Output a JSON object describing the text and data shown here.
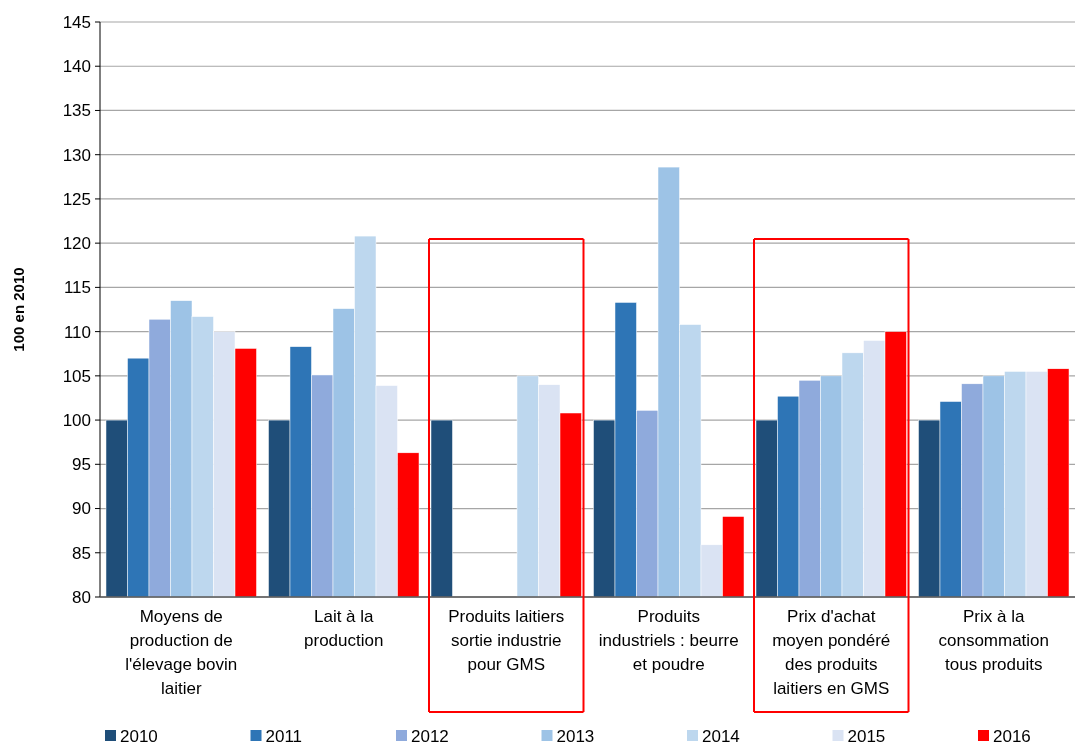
{
  "chart_data": {
    "type": "bar",
    "ylabel": "100 en 2010",
    "categories": [
      "Moyens de production de l'élevage bovin laitier",
      "Lait à la production",
      "Produits laitiers sortie industrie pour GMS",
      "Produits industriels : beurre et poudre",
      "Prix d'achat moyen pondéré des produits laitiers en GMS",
      "Prix à la consommation tous produits"
    ],
    "series": [
      {
        "name": "2010",
        "color": "#1f4e79",
        "values": [
          100,
          100,
          100,
          100,
          100,
          100
        ]
      },
      {
        "name": "2011",
        "color": "#2e75b6",
        "values": [
          107,
          108.3,
          null,
          113.3,
          102.7,
          102.1
        ]
      },
      {
        "name": "2012",
        "color": "#8faadc",
        "values": [
          111.4,
          105.1,
          null,
          101.1,
          104.5,
          104.1
        ]
      },
      {
        "name": "2013",
        "color": "#9dc3e6",
        "values": [
          113.5,
          112.6,
          null,
          128.6,
          105,
          105
        ]
      },
      {
        "name": "2014",
        "color": "#bdd7ee",
        "values": [
          111.7,
          120.8,
          105,
          110.8,
          107.6,
          105.5
        ]
      },
      {
        "name": "2015",
        "color": "#dae3f3",
        "values": [
          110,
          103.9,
          104,
          85.9,
          109,
          105.5
        ]
      },
      {
        "name": "2016",
        "color": "#ff0000",
        "values": [
          108.1,
          96.3,
          100.8,
          89.1,
          110,
          105.8
        ]
      }
    ],
    "ylim": [
      80,
      145
    ],
    "yticks": [
      80,
      85,
      90,
      95,
      100,
      105,
      110,
      115,
      120,
      125,
      130,
      135,
      140,
      145
    ],
    "grid": "y",
    "legend": "bottom"
  }
}
